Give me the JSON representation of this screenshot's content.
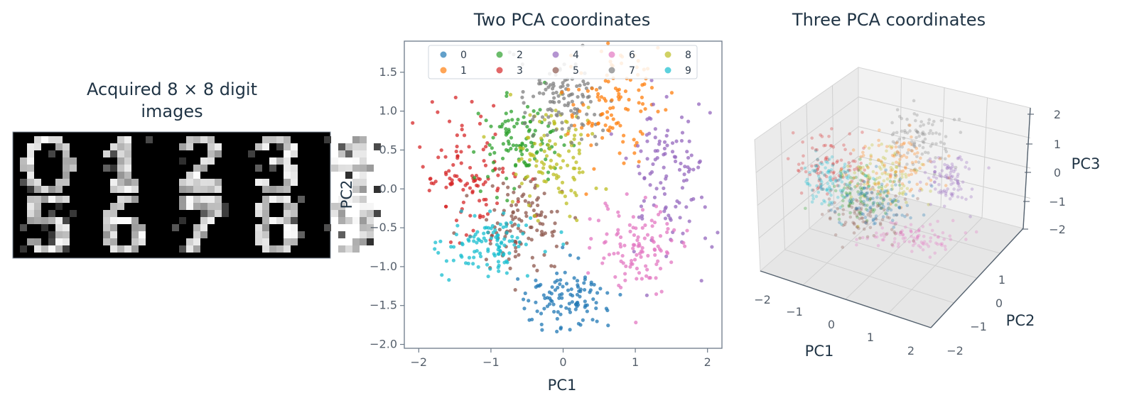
{
  "panels": {
    "digits_title_line1": "Acquired 8 × 8 digit",
    "digits_title_line2": "images"
  },
  "colors": {
    "0": "#1f77b4",
    "1": "#ff7f0e",
    "2": "#2ca02c",
    "3": "#d62728",
    "4": "#9467bd",
    "5": "#8c564b",
    "6": "#e377c2",
    "7": "#7f7f7f",
    "8": "#bcbd22",
    "9": "#17becf"
  },
  "digit_grid": {
    "rows": 2,
    "cols": 5,
    "digits": [
      "0",
      "1",
      "2",
      "3",
      "4",
      "5",
      "6",
      "7",
      "8",
      "9"
    ]
  },
  "chart_data": [
    {
      "type": "scatter",
      "title": "Two PCA coordinates",
      "xlabel": "PC1",
      "ylabel": "PC2",
      "xlim": [
        -2.2,
        2.2
      ],
      "ylim": [
        -2.05,
        1.9
      ],
      "xticks": [
        "−2",
        "−1",
        "0",
        "1",
        "2"
      ],
      "xtick_values": [
        -2,
        -1,
        0,
        1,
        2
      ],
      "yticks": [
        "1.5",
        "1.0",
        "0.5",
        "0.0",
        "−0.5",
        "−1.0",
        "−1.5",
        "−2.0"
      ],
      "ytick_values": [
        1.5,
        1.0,
        0.5,
        0.0,
        -0.5,
        -1.0,
        -1.5,
        -2.0
      ],
      "legend": {
        "placement": "top",
        "entries": [
          "0",
          "1",
          "2",
          "3",
          "4",
          "5",
          "6",
          "7",
          "8",
          "9"
        ]
      },
      "series": [
        {
          "name": "0",
          "center": [
            0.05,
            -1.4
          ],
          "spread": [
            0.28,
            0.17
          ]
        },
        {
          "name": "1",
          "center": [
            0.65,
            1.1
          ],
          "spread": [
            0.32,
            0.35
          ]
        },
        {
          "name": "2",
          "center": [
            -0.6,
            0.6
          ],
          "spread": [
            0.3,
            0.25
          ]
        },
        {
          "name": "3",
          "center": [
            -1.35,
            0.1
          ],
          "spread": [
            0.35,
            0.4
          ]
        },
        {
          "name": "4",
          "center": [
            1.5,
            0.15
          ],
          "spread": [
            0.3,
            0.45
          ]
        },
        {
          "name": "5",
          "center": [
            -0.55,
            -0.45
          ],
          "spread": [
            0.35,
            0.3
          ]
        },
        {
          "name": "6",
          "center": [
            1.05,
            -0.75
          ],
          "spread": [
            0.28,
            0.3
          ]
        },
        {
          "name": "7",
          "center": [
            -0.05,
            1.15
          ],
          "spread": [
            0.3,
            0.28
          ]
        },
        {
          "name": "8",
          "center": [
            -0.1,
            0.35
          ],
          "spread": [
            0.3,
            0.35
          ]
        },
        {
          "name": "9",
          "center": [
            -1.0,
            -0.7
          ],
          "spread": [
            0.3,
            0.2
          ]
        }
      ]
    },
    {
      "type": "scatter",
      "title": "Three PCA coordinates",
      "xlabel": "PC1",
      "ylabel": "PC2",
      "zlabel": "PC3",
      "xticks": [
        "−2",
        "−1",
        "0",
        "1",
        "2"
      ],
      "yticks": [
        "−2",
        "−1",
        "0",
        "1"
      ],
      "zticks": [
        "2",
        "1",
        "0",
        "−1",
        "−2"
      ]
    }
  ]
}
